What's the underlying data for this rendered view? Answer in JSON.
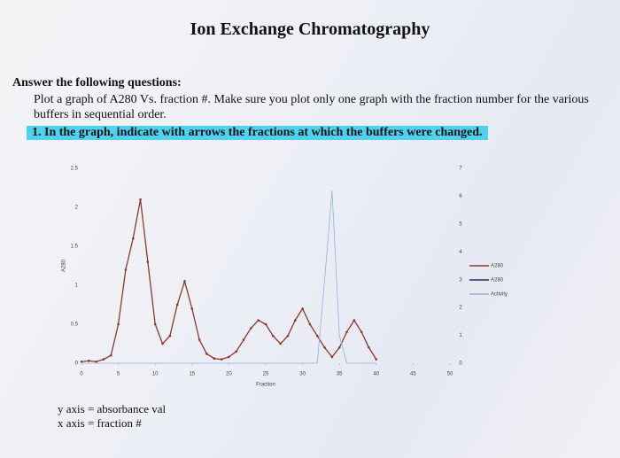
{
  "title": "Ion Exchange Chromatography",
  "question_heading": "Answer the following questions:",
  "instruction": "Plot a graph of A280 Vs. fraction #. Make sure you plot only one graph with the fraction number for the various buffers in sequential order.",
  "task": "1.  In the graph, indicate with arrows the fractions at which the buffers were changed.",
  "footer": [
    "y axis = absorbance val",
    "x axis = fraction #"
  ],
  "chart_data": {
    "type": "line",
    "x_label": "Fraction",
    "y_label": "A280",
    "x": [
      0,
      1,
      2,
      3,
      4,
      5,
      6,
      7,
      8,
      9,
      10,
      11,
      12,
      13,
      14,
      15,
      16,
      17,
      18,
      19,
      20,
      21,
      22,
      23,
      24,
      25,
      26,
      27,
      28,
      29,
      30,
      31,
      32,
      33,
      34,
      35,
      36,
      37,
      38,
      39,
      40
    ],
    "series": [
      {
        "name": "A280",
        "color": "#8b3a2a",
        "values": [
          0.02,
          0.03,
          0.02,
          0.05,
          0.1,
          0.5,
          1.2,
          1.6,
          2.1,
          1.3,
          0.5,
          0.25,
          0.35,
          0.75,
          1.05,
          0.7,
          0.3,
          0.12,
          0.06,
          0.05,
          0.08,
          0.15,
          0.3,
          0.45,
          0.55,
          0.5,
          0.35,
          0.25,
          0.35,
          0.55,
          0.7,
          0.5,
          0.35,
          0.2,
          0.08,
          0.2,
          0.4,
          0.55,
          0.4,
          0.2,
          0.05
        ]
      },
      {
        "name": "A280",
        "color": "#1f2f6b",
        "values": [
          null,
          null,
          null,
          null,
          null,
          null,
          null,
          null,
          null,
          null,
          null,
          null,
          null,
          null,
          null,
          null,
          null,
          null,
          null,
          null,
          null,
          null,
          null,
          null,
          null,
          null,
          null,
          null,
          null,
          null,
          null,
          null,
          null,
          null,
          null,
          null,
          null,
          null,
          null,
          null,
          null
        ]
      },
      {
        "name": "Activity",
        "color": "#8fb3dd",
        "axis": "y2",
        "values": [
          0,
          0,
          0,
          0,
          0,
          0,
          0,
          0,
          0,
          0,
          0,
          0,
          0,
          0,
          0,
          0,
          0,
          0,
          0,
          0,
          0,
          0,
          0,
          0,
          0,
          0,
          0,
          0,
          0,
          0,
          0,
          0,
          0,
          3,
          6.2,
          1,
          0,
          0,
          0,
          0,
          0
        ]
      }
    ],
    "xlim": [
      0,
      50
    ],
    "xticks": [
      0,
      5,
      10,
      15,
      20,
      25,
      30,
      35,
      40,
      45,
      50
    ],
    "ylim": [
      0,
      2.5
    ],
    "yticks": [
      0,
      0.5,
      1,
      1.5,
      2,
      2.5
    ],
    "y2lim": [
      0,
      7
    ],
    "y2ticks": [
      0,
      1,
      2,
      3,
      4,
      5,
      6,
      7
    ]
  }
}
